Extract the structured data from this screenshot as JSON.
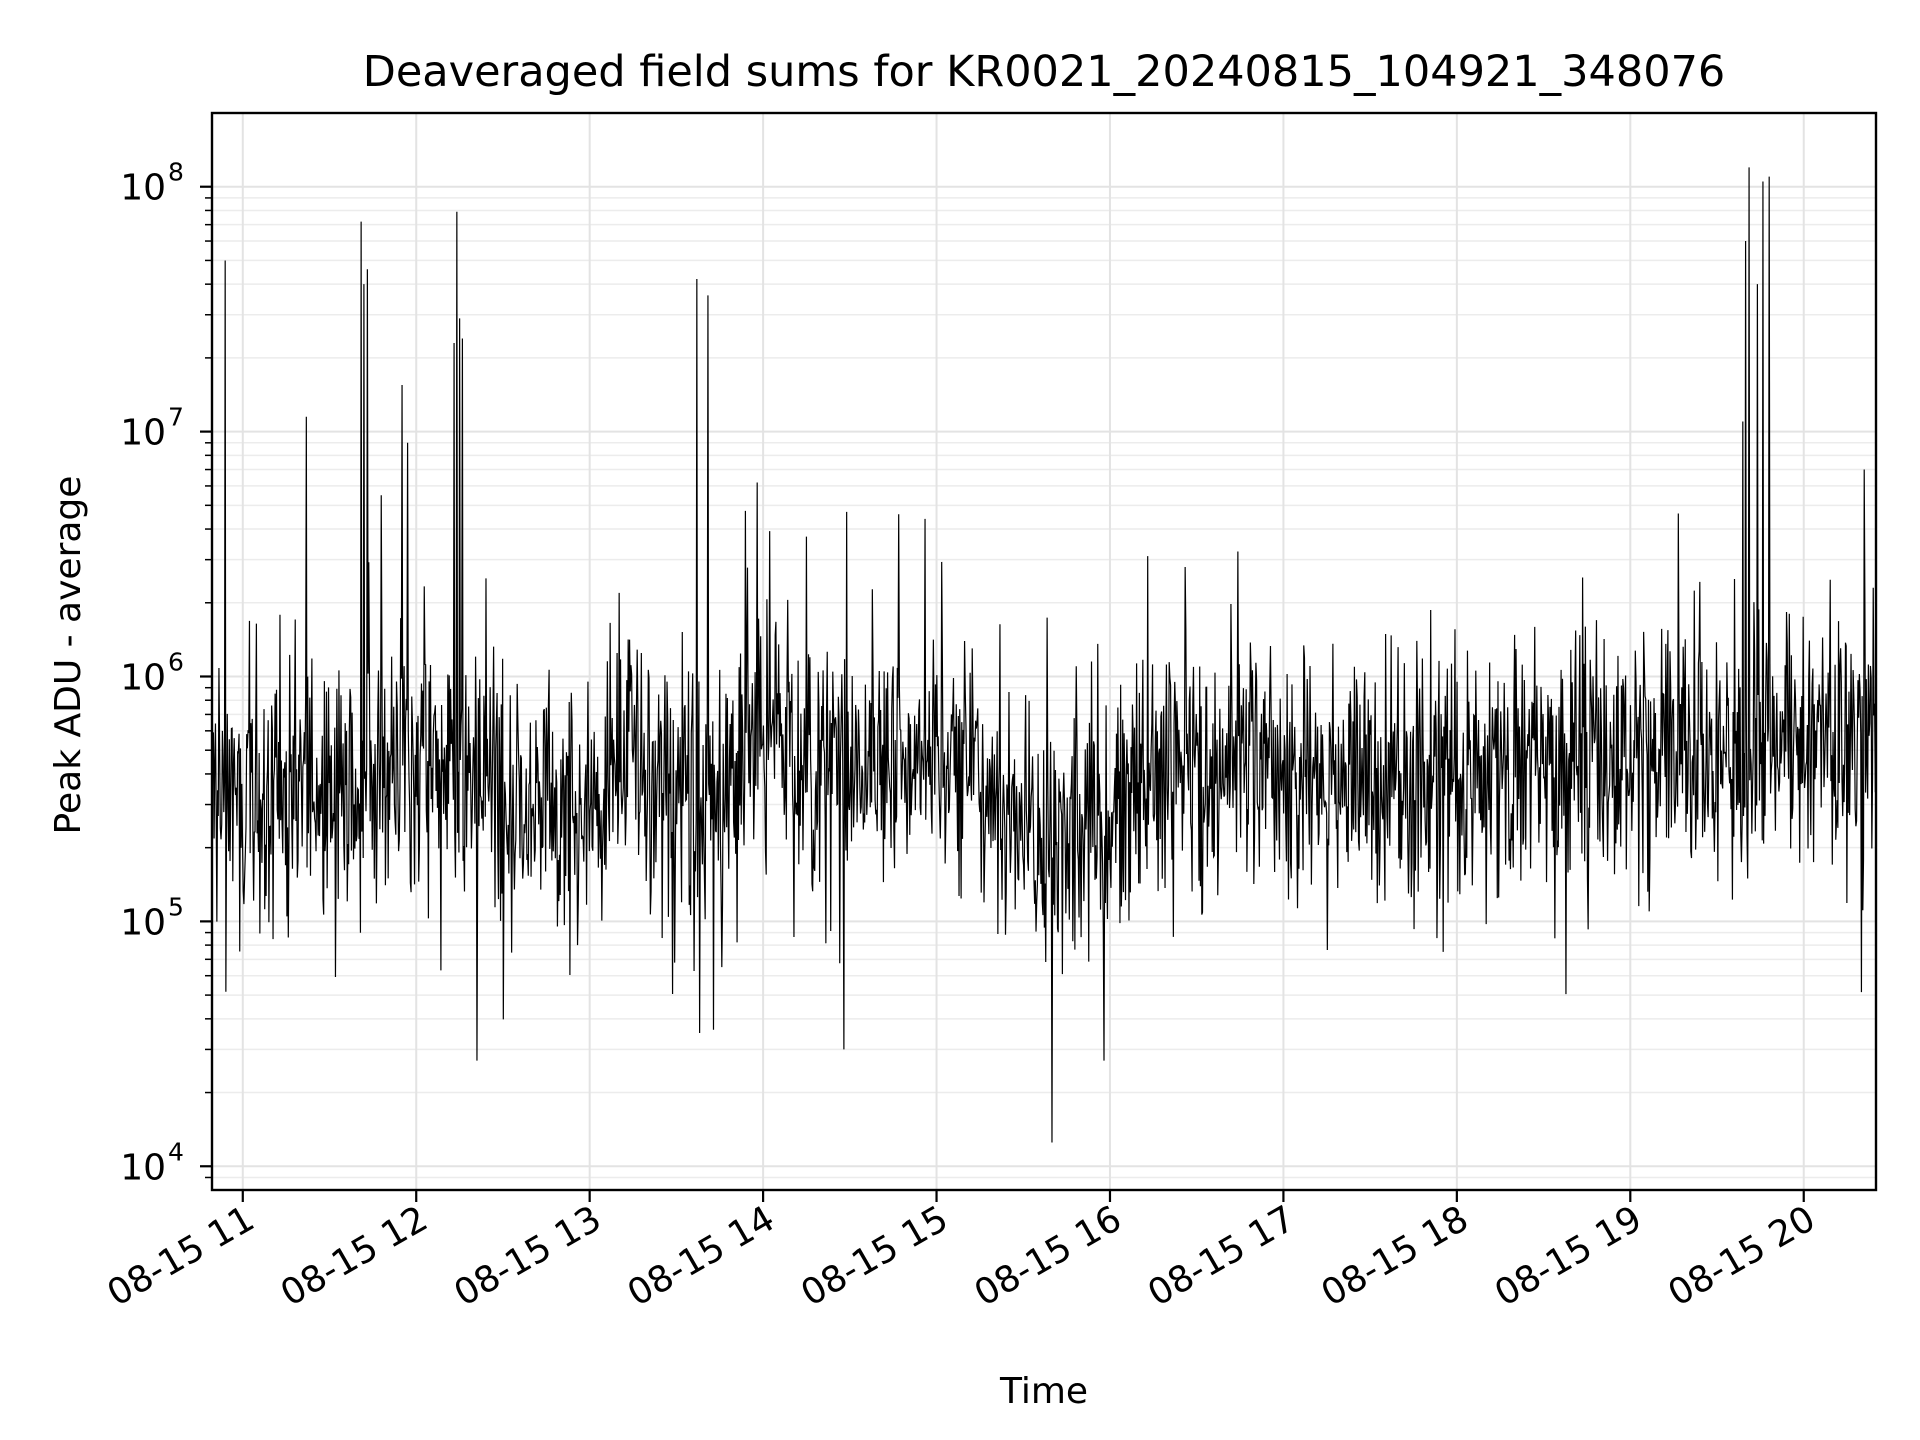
{
  "chart_data": {
    "type": "line",
    "title": "Deaveraged field sums for KR0021_20240815_104921_348076",
    "xlabel": "Time",
    "ylabel": "Peak ADU - average",
    "x_axis": {
      "type": "datetime",
      "range": [
        "2024-08-15T10:49:21",
        "2024-08-15T20:25:00"
      ],
      "ticks": [
        "2024-08-15T11:00",
        "2024-08-15T12:00",
        "2024-08-15T13:00",
        "2024-08-15T14:00",
        "2024-08-15T15:00",
        "2024-08-15T16:00",
        "2024-08-15T17:00",
        "2024-08-15T18:00",
        "2024-08-15T19:00",
        "2024-08-15T20:00"
      ],
      "tick_labels": [
        "08-15 11",
        "08-15 12",
        "08-15 13",
        "08-15 14",
        "08-15 15",
        "08-15 16",
        "08-15 17",
        "08-15 18",
        "08-15 19",
        "08-15 20"
      ]
    },
    "y_axis": {
      "scale": "log",
      "range": [
        8000,
        200000000
      ],
      "ticks": [
        10000,
        100000,
        1000000,
        10000000,
        100000000
      ],
      "tick_base": [
        "10",
        "10",
        "10",
        "10",
        "10"
      ],
      "tick_exponents": [
        "4",
        "5",
        "6",
        "7",
        "8"
      ]
    },
    "grid": true,
    "series": [
      {
        "color": "#000000",
        "baseline_profile": [
          {
            "t": "2024-08-15T10:49",
            "v": 300000
          },
          {
            "t": "2024-08-15T11:30",
            "v": 300000
          },
          {
            "t": "2024-08-15T12:00",
            "v": 500000
          },
          {
            "t": "2024-08-15T12:40",
            "v": 250000
          },
          {
            "t": "2024-08-15T13:20",
            "v": 400000
          },
          {
            "t": "2024-08-15T13:45",
            "v": 250000
          },
          {
            "t": "2024-08-15T14:00",
            "v": 600000
          },
          {
            "t": "2024-08-15T14:30",
            "v": 400000
          },
          {
            "t": "2024-08-15T15:00",
            "v": 500000
          },
          {
            "t": "2024-08-15T15:40",
            "v": 200000
          },
          {
            "t": "2024-08-15T16:30",
            "v": 450000
          },
          {
            "t": "2024-08-15T17:30",
            "v": 350000
          },
          {
            "t": "2024-08-15T18:30",
            "v": 450000
          },
          {
            "t": "2024-08-15T19:30",
            "v": 450000
          },
          {
            "t": "2024-08-15T20:25",
            "v": 550000
          }
        ],
        "spikes": [
          {
            "t": "2024-08-15T10:54",
            "v": 50000000
          },
          {
            "t": "2024-08-15T11:22",
            "v": 11500000
          },
          {
            "t": "2024-08-15T11:41",
            "v": 72000000
          },
          {
            "t": "2024-08-15T11:42",
            "v": 40000000
          },
          {
            "t": "2024-08-15T11:43",
            "v": 46000000
          },
          {
            "t": "2024-08-15T11:48",
            "v": 5500000
          },
          {
            "t": "2024-08-15T11:55",
            "v": 15500000
          },
          {
            "t": "2024-08-15T11:57",
            "v": 9000000
          },
          {
            "t": "2024-08-15T12:13",
            "v": 23000000
          },
          {
            "t": "2024-08-15T12:14",
            "v": 79000000
          },
          {
            "t": "2024-08-15T12:15",
            "v": 29000000
          },
          {
            "t": "2024-08-15T12:16",
            "v": 24000000
          },
          {
            "t": "2024-08-15T13:37",
            "v": 42000000
          },
          {
            "t": "2024-08-15T13:41",
            "v": 36000000
          },
          {
            "t": "2024-08-15T13:58",
            "v": 6200000
          },
          {
            "t": "2024-08-15T14:29",
            "v": 4700000
          },
          {
            "t": "2024-08-15T14:47",
            "v": 4600000
          },
          {
            "t": "2024-08-15T14:56",
            "v": 4400000
          },
          {
            "t": "2024-08-15T16:13",
            "v": 3100000
          },
          {
            "t": "2024-08-15T16:26",
            "v": 2800000
          },
          {
            "t": "2024-08-15T19:39",
            "v": 11000000
          },
          {
            "t": "2024-08-15T19:40",
            "v": 60000000
          },
          {
            "t": "2024-08-15T19:41",
            "v": 120000000
          },
          {
            "t": "2024-08-15T19:44",
            "v": 40000000
          },
          {
            "t": "2024-08-15T19:46",
            "v": 105000000
          },
          {
            "t": "2024-08-15T19:48",
            "v": 110000000
          },
          {
            "t": "2024-08-15T20:21",
            "v": 7000000
          }
        ],
        "dips": [
          {
            "t": "2024-08-15T12:21",
            "v": 27000
          },
          {
            "t": "2024-08-15T15:40",
            "v": 12500
          },
          {
            "t": "2024-08-15T15:58",
            "v": 27000
          },
          {
            "t": "2024-08-15T13:38",
            "v": 35000
          },
          {
            "t": "2024-08-15T14:28",
            "v": 30000
          }
        ]
      }
    ]
  }
}
